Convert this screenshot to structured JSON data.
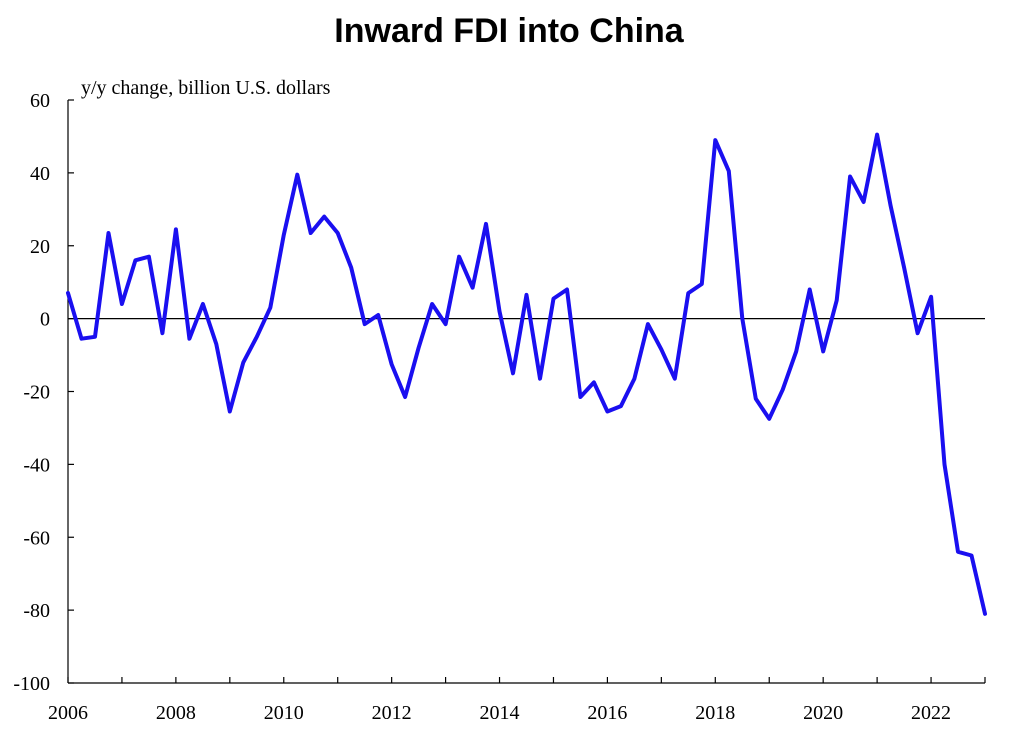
{
  "chart_data": {
    "type": "line",
    "title": "Inward FDI into China",
    "ylabel": "y/y change,  billion  U.S. dollars",
    "xlabel": "",
    "ylim": [
      -100,
      60
    ],
    "yticks": [
      60,
      40,
      20,
      0,
      -20,
      -40,
      -60,
      -80,
      -100
    ],
    "ytick_labels": [
      "60",
      "40",
      "20",
      "0",
      "-20",
      "-40",
      "-60",
      "-80",
      "-100"
    ],
    "xlim": [
      2006,
      2023.0
    ],
    "xticks": [
      2006,
      2008,
      2010,
      2012,
      2014,
      2016,
      2018,
      2020,
      2022
    ],
    "xtick_labels": [
      "2006",
      "2008",
      "2010",
      "2012",
      "2014",
      "2016",
      "2018",
      "2020",
      "2022"
    ],
    "zero_line": true,
    "series": [
      {
        "name": "Inward FDI y/y change",
        "color": "#1a0ff0",
        "x": [
          2006.0,
          2006.25,
          2006.5,
          2006.75,
          2007.0,
          2007.25,
          2007.5,
          2007.75,
          2008.0,
          2008.25,
          2008.5,
          2008.75,
          2009.0,
          2009.25,
          2009.5,
          2009.75,
          2010.0,
          2010.25,
          2010.5,
          2010.75,
          2011.0,
          2011.25,
          2011.5,
          2011.75,
          2012.0,
          2012.25,
          2012.5,
          2012.75,
          2013.0,
          2013.25,
          2013.5,
          2013.75,
          2014.0,
          2014.25,
          2014.5,
          2014.75,
          2015.0,
          2015.25,
          2015.5,
          2015.75,
          2016.0,
          2016.25,
          2016.5,
          2016.75,
          2017.0,
          2017.25,
          2017.5,
          2017.75,
          2018.0,
          2018.25,
          2018.5,
          2018.75,
          2019.0,
          2019.25,
          2019.5,
          2019.75,
          2020.0,
          2020.25,
          2020.5,
          2020.75,
          2021.0,
          2021.25,
          2021.5,
          2021.75,
          2022.0,
          2022.25,
          2022.5,
          2022.75,
          2023.0
        ],
        "values": [
          7,
          -5.5,
          -5,
          23.5,
          4,
          16,
          17,
          -4,
          24.5,
          -5.5,
          4,
          -7,
          -25.5,
          -12,
          -5,
          3,
          23,
          39.5,
          23.5,
          28,
          23.5,
          14,
          -1.5,
          1,
          -12.5,
          -21.5,
          -8,
          4,
          -1.5,
          17,
          8.5,
          26,
          2,
          -15,
          6.5,
          -16.5,
          5.5,
          8,
          -21.5,
          -17.5,
          -25.5,
          -24,
          -16.5,
          -1.5,
          -8.5,
          -16.5,
          7,
          9.5,
          49,
          40.5,
          0,
          -22,
          -27.5,
          -19.5,
          -9,
          8,
          -9,
          5,
          39,
          32,
          50.5,
          31,
          14,
          -4,
          6,
          -40,
          -64,
          -65,
          -81
        ]
      }
    ]
  }
}
